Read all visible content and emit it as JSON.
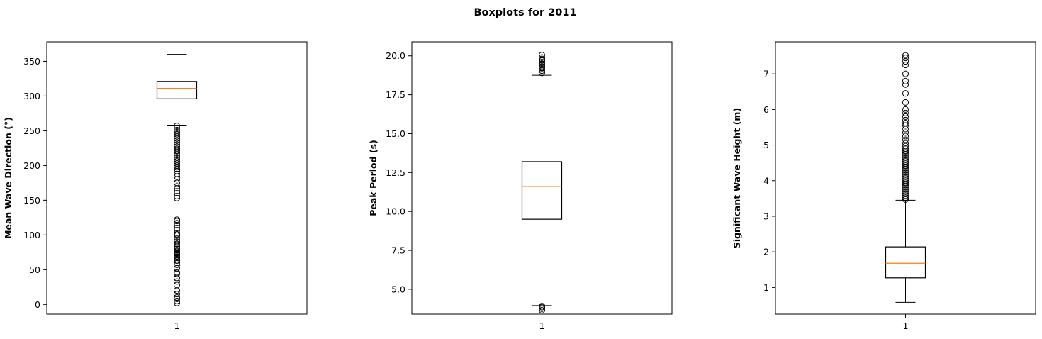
{
  "title": "Boxplots for 2011",
  "chart_data": [
    {
      "type": "boxplot",
      "ylabel": "Mean Wave Direction (°)",
      "ylim": [
        -14,
        378
      ],
      "yticks": [
        0,
        50,
        100,
        150,
        200,
        250,
        300,
        350
      ],
      "categories": [
        "1"
      ],
      "box": {
        "whisker_low": 258,
        "q1": 296,
        "median": 311,
        "q3": 321,
        "whisker_high": 360
      },
      "outliers": [
        2,
        5,
        8,
        10,
        15,
        20,
        28,
        33,
        38,
        44,
        46,
        52,
        57,
        60,
        63,
        65,
        67,
        69,
        71,
        73,
        74,
        76,
        78,
        80,
        82,
        84,
        87,
        90,
        93,
        96,
        99,
        101,
        103,
        107,
        110,
        114,
        117,
        120,
        122,
        153,
        156,
        160,
        163,
        167,
        170,
        175,
        180,
        184,
        188,
        192,
        195,
        198,
        200,
        203,
        206,
        209,
        212,
        215,
        218,
        221,
        224,
        227,
        230,
        233,
        236,
        239,
        242,
        245,
        248,
        251,
        254,
        257
      ],
      "grid": false
    },
    {
      "type": "boxplot",
      "ylabel": "Peak Period (s)",
      "ylim": [
        3.4,
        20.9
      ],
      "yticks": [
        5.0,
        7.5,
        10.0,
        12.5,
        15.0,
        17.5,
        20.0
      ],
      "ytick_labels": [
        "5.0",
        "7.5",
        "10.0",
        "12.5",
        "15.0",
        "17.5",
        "20.0"
      ],
      "categories": [
        "1"
      ],
      "box": {
        "whisker_low": 3.95,
        "q1": 9.5,
        "median": 11.6,
        "q3": 13.2,
        "whisker_high": 18.75
      },
      "outliers": [
        3.65,
        3.75,
        3.85,
        3.92,
        18.9,
        19.05,
        19.2,
        19.3,
        19.4,
        19.5,
        19.6,
        19.7,
        19.8,
        19.9,
        20.05
      ],
      "grid": false
    },
    {
      "type": "boxplot",
      "ylabel": "Significant Wave Height (m)",
      "ylim": [
        0.25,
        7.9
      ],
      "yticks": [
        1,
        2,
        3,
        4,
        5,
        6,
        7
      ],
      "categories": [
        "1"
      ],
      "box": {
        "whisker_low": 0.58,
        "q1": 1.27,
        "median": 1.68,
        "q3": 2.14,
        "whisker_high": 3.45
      },
      "outliers": [
        3.47,
        3.52,
        3.58,
        3.64,
        3.7,
        3.76,
        3.82,
        3.88,
        3.94,
        4.0,
        4.06,
        4.12,
        4.18,
        4.24,
        4.3,
        4.36,
        4.42,
        4.48,
        4.54,
        4.6,
        4.66,
        4.72,
        4.78,
        4.84,
        4.9,
        4.97,
        5.05,
        5.15,
        5.25,
        5.35,
        5.45,
        5.55,
        5.62,
        5.7,
        5.8,
        5.9,
        6.0,
        6.2,
        6.45,
        6.7,
        6.8,
        7.0,
        7.25,
        7.35,
        7.45,
        7.52
      ],
      "grid": false
    }
  ]
}
